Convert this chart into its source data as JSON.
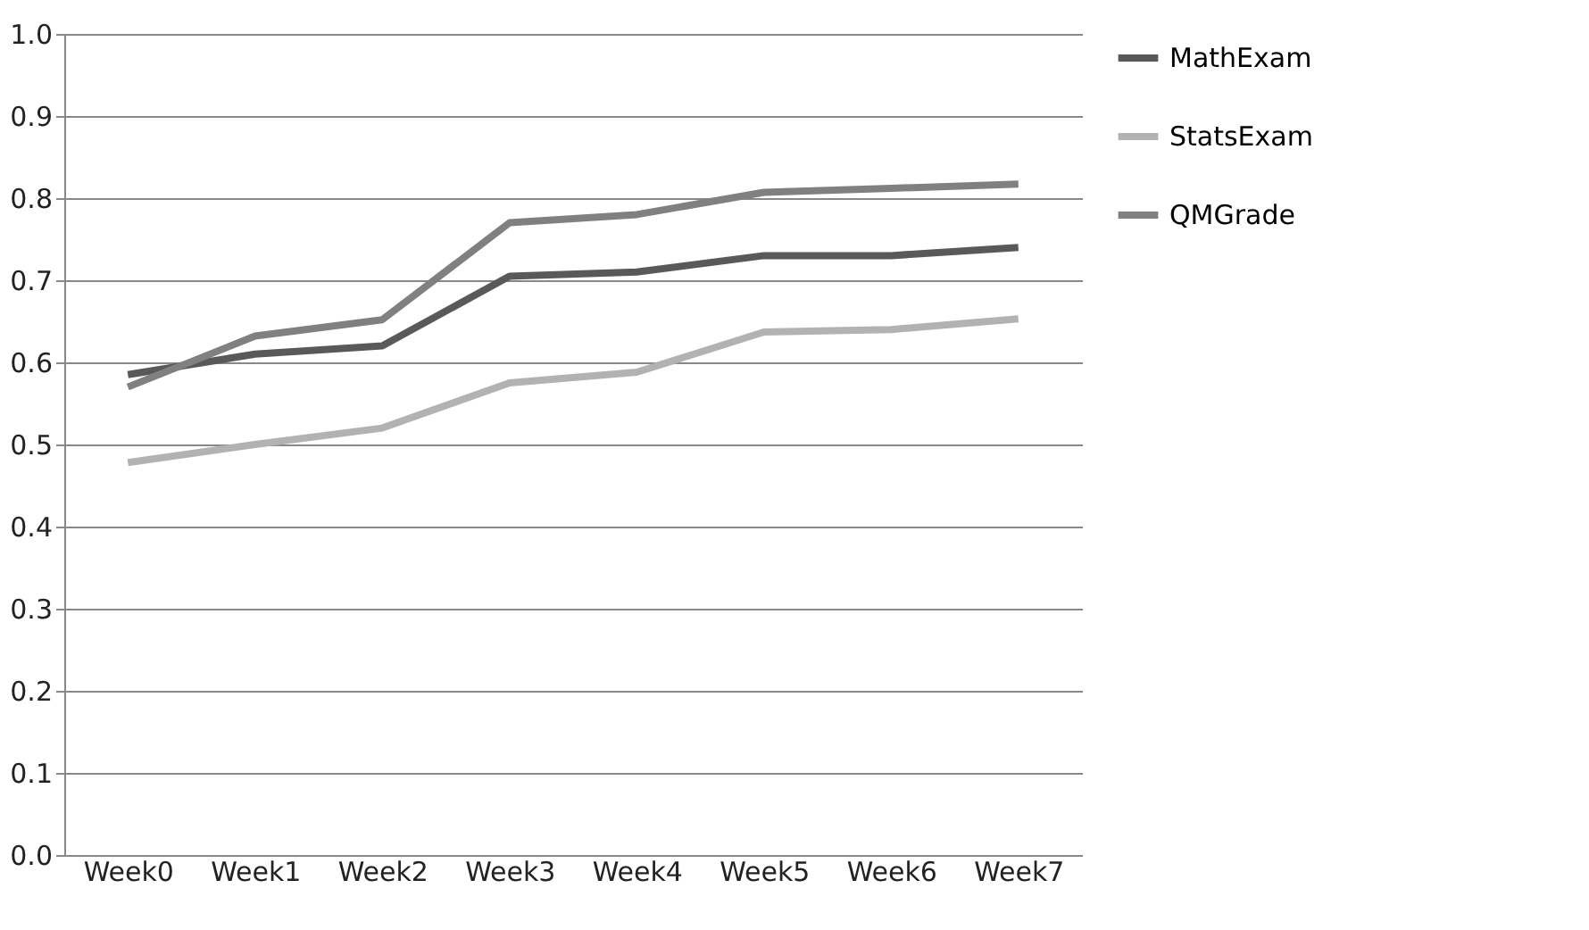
{
  "chart_data": {
    "type": "line",
    "categories": [
      "Week0",
      "Week1",
      "Week2",
      "Week3",
      "Week4",
      "Week5",
      "Week6",
      "Week7"
    ],
    "series": [
      {
        "name": "MathExam",
        "color": "#595959",
        "values": [
          0.585,
          0.61,
          0.62,
          0.705,
          0.71,
          0.73,
          0.73,
          0.74
        ]
      },
      {
        "name": "StatsExam",
        "color": "#b2b2b2",
        "values": [
          0.478,
          0.5,
          0.52,
          0.575,
          0.588,
          0.637,
          0.64,
          0.653
        ]
      },
      {
        "name": "QMGrade",
        "color": "#808080",
        "values": [
          0.57,
          0.632,
          0.652,
          0.77,
          0.78,
          0.807,
          0.812,
          0.817
        ]
      }
    ],
    "ylim": [
      0,
      1
    ],
    "yticks": [
      {
        "value": 0,
        "label": "0.0"
      },
      0.1,
      0.2,
      0.3,
      0.4,
      0.5,
      0.6,
      0.7,
      0.8,
      0.9,
      {
        "value": 1,
        "label": "1.0"
      }
    ],
    "grid": "y",
    "legend": "right",
    "marker": "none",
    "line_style": "solid"
  }
}
